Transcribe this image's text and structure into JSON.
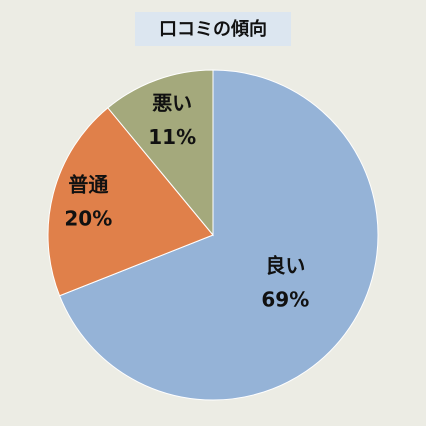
{
  "chart_data": {
    "type": "pie",
    "title": "口コミの傾向",
    "categories": [
      "良い",
      "普通",
      "悪い"
    ],
    "values": [
      69,
      20,
      11
    ],
    "value_labels": [
      "69%",
      "20%",
      "11%"
    ],
    "colors": [
      "#95b3d7",
      "#e0804a",
      "#a4a97c"
    ]
  }
}
